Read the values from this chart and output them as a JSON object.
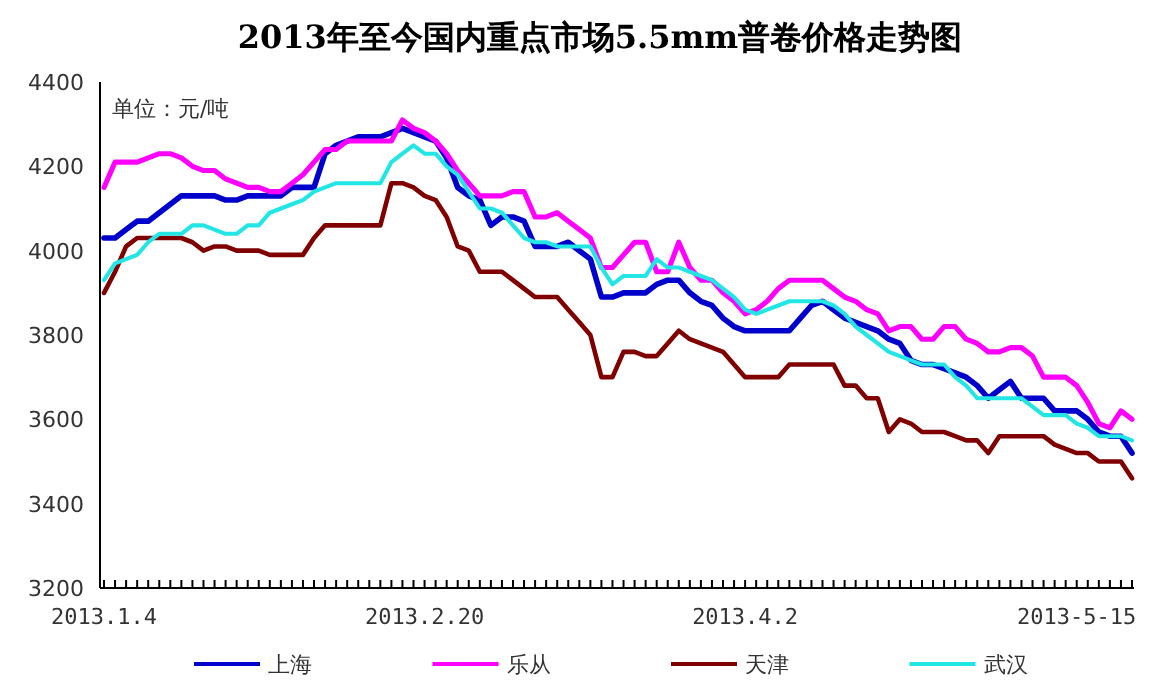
{
  "chart_data": {
    "type": "line",
    "title": "2013年至今国内重点市场5.5mm普卷价格走势图",
    "annotations": [
      "单位：元/吨"
    ],
    "categories": [
      "2013.1.4",
      null,
      null,
      null,
      null,
      null,
      null,
      null,
      null,
      null,
      null,
      null,
      null,
      null,
      null,
      null,
      null,
      null,
      null,
      null,
      null,
      null,
      null,
      null,
      null,
      null,
      null,
      null,
      null,
      "2013.2.20",
      null,
      null,
      null,
      null,
      null,
      null,
      null,
      null,
      null,
      null,
      null,
      null,
      null,
      null,
      null,
      null,
      null,
      null,
      null,
      null,
      null,
      null,
      null,
      null,
      null,
      null,
      null,
      null,
      "2013.4.2",
      null,
      null,
      null,
      null,
      null,
      null,
      null,
      null,
      null,
      null,
      null,
      null,
      null,
      null,
      null,
      null,
      null,
      null,
      null,
      null,
      null,
      null,
      null,
      null,
      null,
      null,
      null,
      null,
      null,
      "2013-5-15",
      null,
      null,
      null,
      null,
      null
    ],
    "ylim": [
      3200,
      4400
    ],
    "yticks": [
      3200,
      3400,
      3600,
      3800,
      4000,
      4200,
      4400
    ],
    "legend": "bottom",
    "series": [
      {
        "name": "上海",
        "color": "#0000cc",
        "values": [
          4030,
          4030,
          4050,
          4070,
          4070,
          4090,
          4110,
          4130,
          4130,
          4130,
          4130,
          4120,
          4120,
          4130,
          4130,
          4130,
          4130,
          4150,
          4150,
          4150,
          4230,
          4250,
          4260,
          4270,
          4270,
          4270,
          4280,
          4290,
          4280,
          4270,
          4260,
          4220,
          4150,
          4130,
          4120,
          4060,
          4080,
          4080,
          4070,
          4010,
          4010,
          4010,
          4020,
          4000,
          3980,
          3890,
          3890,
          3900,
          3900,
          3900,
          3920,
          3930,
          3930,
          3900,
          3880,
          3870,
          3840,
          3820,
          3810,
          3810,
          3810,
          3810,
          3810,
          3840,
          3870,
          3880,
          3860,
          3840,
          3830,
          3820,
          3810,
          3790,
          3780,
          3740,
          3730,
          3730,
          3720,
          3710,
          3700,
          3680,
          3650,
          3670,
          3690,
          3650,
          3650,
          3650,
          3620,
          3620,
          3620,
          3600,
          3570,
          3560,
          3560,
          3520
        ]
      },
      {
        "name": "乐从",
        "color": "#ff00ff",
        "values": [
          4150,
          4210,
          4210,
          4210,
          4220,
          4230,
          4230,
          4220,
          4200,
          4190,
          4190,
          4170,
          4160,
          4150,
          4150,
          4140,
          4140,
          4160,
          4180,
          4210,
          4240,
          4240,
          4260,
          4260,
          4260,
          4260,
          4260,
          4310,
          4290,
          4280,
          4260,
          4230,
          4190,
          4160,
          4130,
          4130,
          4130,
          4140,
          4140,
          4080,
          4080,
          4090,
          4070,
          4050,
          4030,
          3960,
          3960,
          3990,
          4020,
          4020,
          3950,
          3950,
          4020,
          3960,
          3930,
          3930,
          3900,
          3880,
          3850,
          3860,
          3880,
          3910,
          3930,
          3930,
          3930,
          3930,
          3910,
          3890,
          3880,
          3860,
          3850,
          3810,
          3820,
          3820,
          3790,
          3790,
          3820,
          3820,
          3790,
          3780,
          3760,
          3760,
          3770,
          3770,
          3750,
          3700,
          3700,
          3700,
          3680,
          3640,
          3590,
          3580,
          3620,
          3600
        ]
      },
      {
        "name": "天津",
        "color": "#800000",
        "values": [
          3900,
          3950,
          4010,
          4030,
          4030,
          4030,
          4030,
          4030,
          4020,
          4000,
          4010,
          4010,
          4000,
          4000,
          4000,
          3990,
          3990,
          3990,
          3990,
          4030,
          4060,
          4060,
          4060,
          4060,
          4060,
          4060,
          4160,
          4160,
          4150,
          4130,
          4120,
          4080,
          4010,
          4000,
          3950,
          3950,
          3950,
          3930,
          3910,
          3890,
          3890,
          3890,
          3860,
          3830,
          3800,
          3700,
          3700,
          3760,
          3760,
          3750,
          3750,
          3780,
          3810,
          3790,
          3780,
          3770,
          3760,
          3730,
          3700,
          3700,
          3700,
          3700,
          3730,
          3730,
          3730,
          3730,
          3730,
          3680,
          3680,
          3650,
          3650,
          3570,
          3600,
          3590,
          3570,
          3570,
          3570,
          3560,
          3550,
          3550,
          3520,
          3560,
          3560,
          3560,
          3560,
          3560,
          3540,
          3530,
          3520,
          3520,
          3500,
          3500,
          3500,
          3460
        ]
      },
      {
        "name": "武汉",
        "color": "#22e5e5",
        "values": [
          3930,
          3970,
          3980,
          3990,
          4020,
          4040,
          4040,
          4040,
          4060,
          4060,
          4050,
          4040,
          4040,
          4060,
          4060,
          4090,
          4100,
          4110,
          4120,
          4140,
          4150,
          4160,
          4160,
          4160,
          4160,
          4160,
          4210,
          4230,
          4250,
          4230,
          4230,
          4200,
          4180,
          4140,
          4100,
          4100,
          4090,
          4060,
          4030,
          4020,
          4020,
          4010,
          4010,
          4010,
          4010,
          3960,
          3920,
          3940,
          3940,
          3940,
          3980,
          3960,
          3960,
          3950,
          3940,
          3930,
          3910,
          3890,
          3860,
          3850,
          3860,
          3870,
          3880,
          3880,
          3880,
          3880,
          3870,
          3850,
          3820,
          3800,
          3780,
          3760,
          3750,
          3740,
          3730,
          3730,
          3730,
          3700,
          3680,
          3650,
          3650,
          3650,
          3650,
          3650,
          3630,
          3610,
          3610,
          3610,
          3590,
          3580,
          3560,
          3560,
          3560,
          3550
        ]
      }
    ]
  }
}
